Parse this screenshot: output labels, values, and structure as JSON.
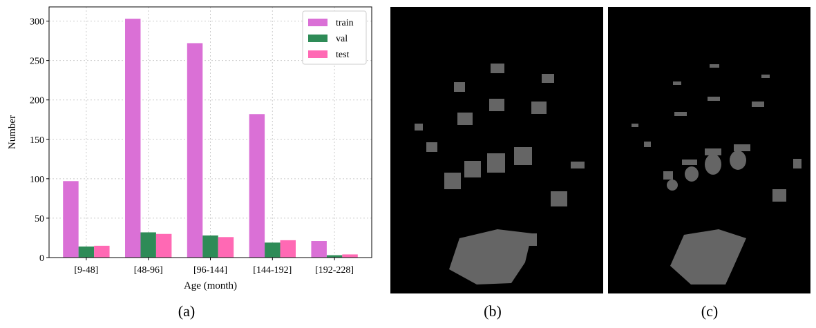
{
  "chart_data": {
    "type": "bar",
    "x_label": "Age (month)",
    "y_label": "Number",
    "categories": [
      "[9-48]",
      "[48-96]",
      "[96-144]",
      "[144-192]",
      "[192-228]"
    ],
    "series": [
      {
        "name": "train",
        "color": "#da70d6",
        "values": [
          97,
          303,
          272,
          182,
          21
        ]
      },
      {
        "name": "val",
        "color": "#2e8b57",
        "values": [
          14,
          32,
          28,
          19,
          3
        ]
      },
      {
        "name": "test",
        "color": "#ff69b4",
        "values": [
          15,
          30,
          26,
          22,
          4
        ]
      }
    ],
    "ylim": [
      0,
      318
    ],
    "yticks": [
      0,
      50,
      100,
      150,
      200,
      250,
      300
    ],
    "grid": true,
    "legend": "upper-right"
  },
  "panel_labels": [
    "(a)",
    "(b)",
    "(c)"
  ]
}
